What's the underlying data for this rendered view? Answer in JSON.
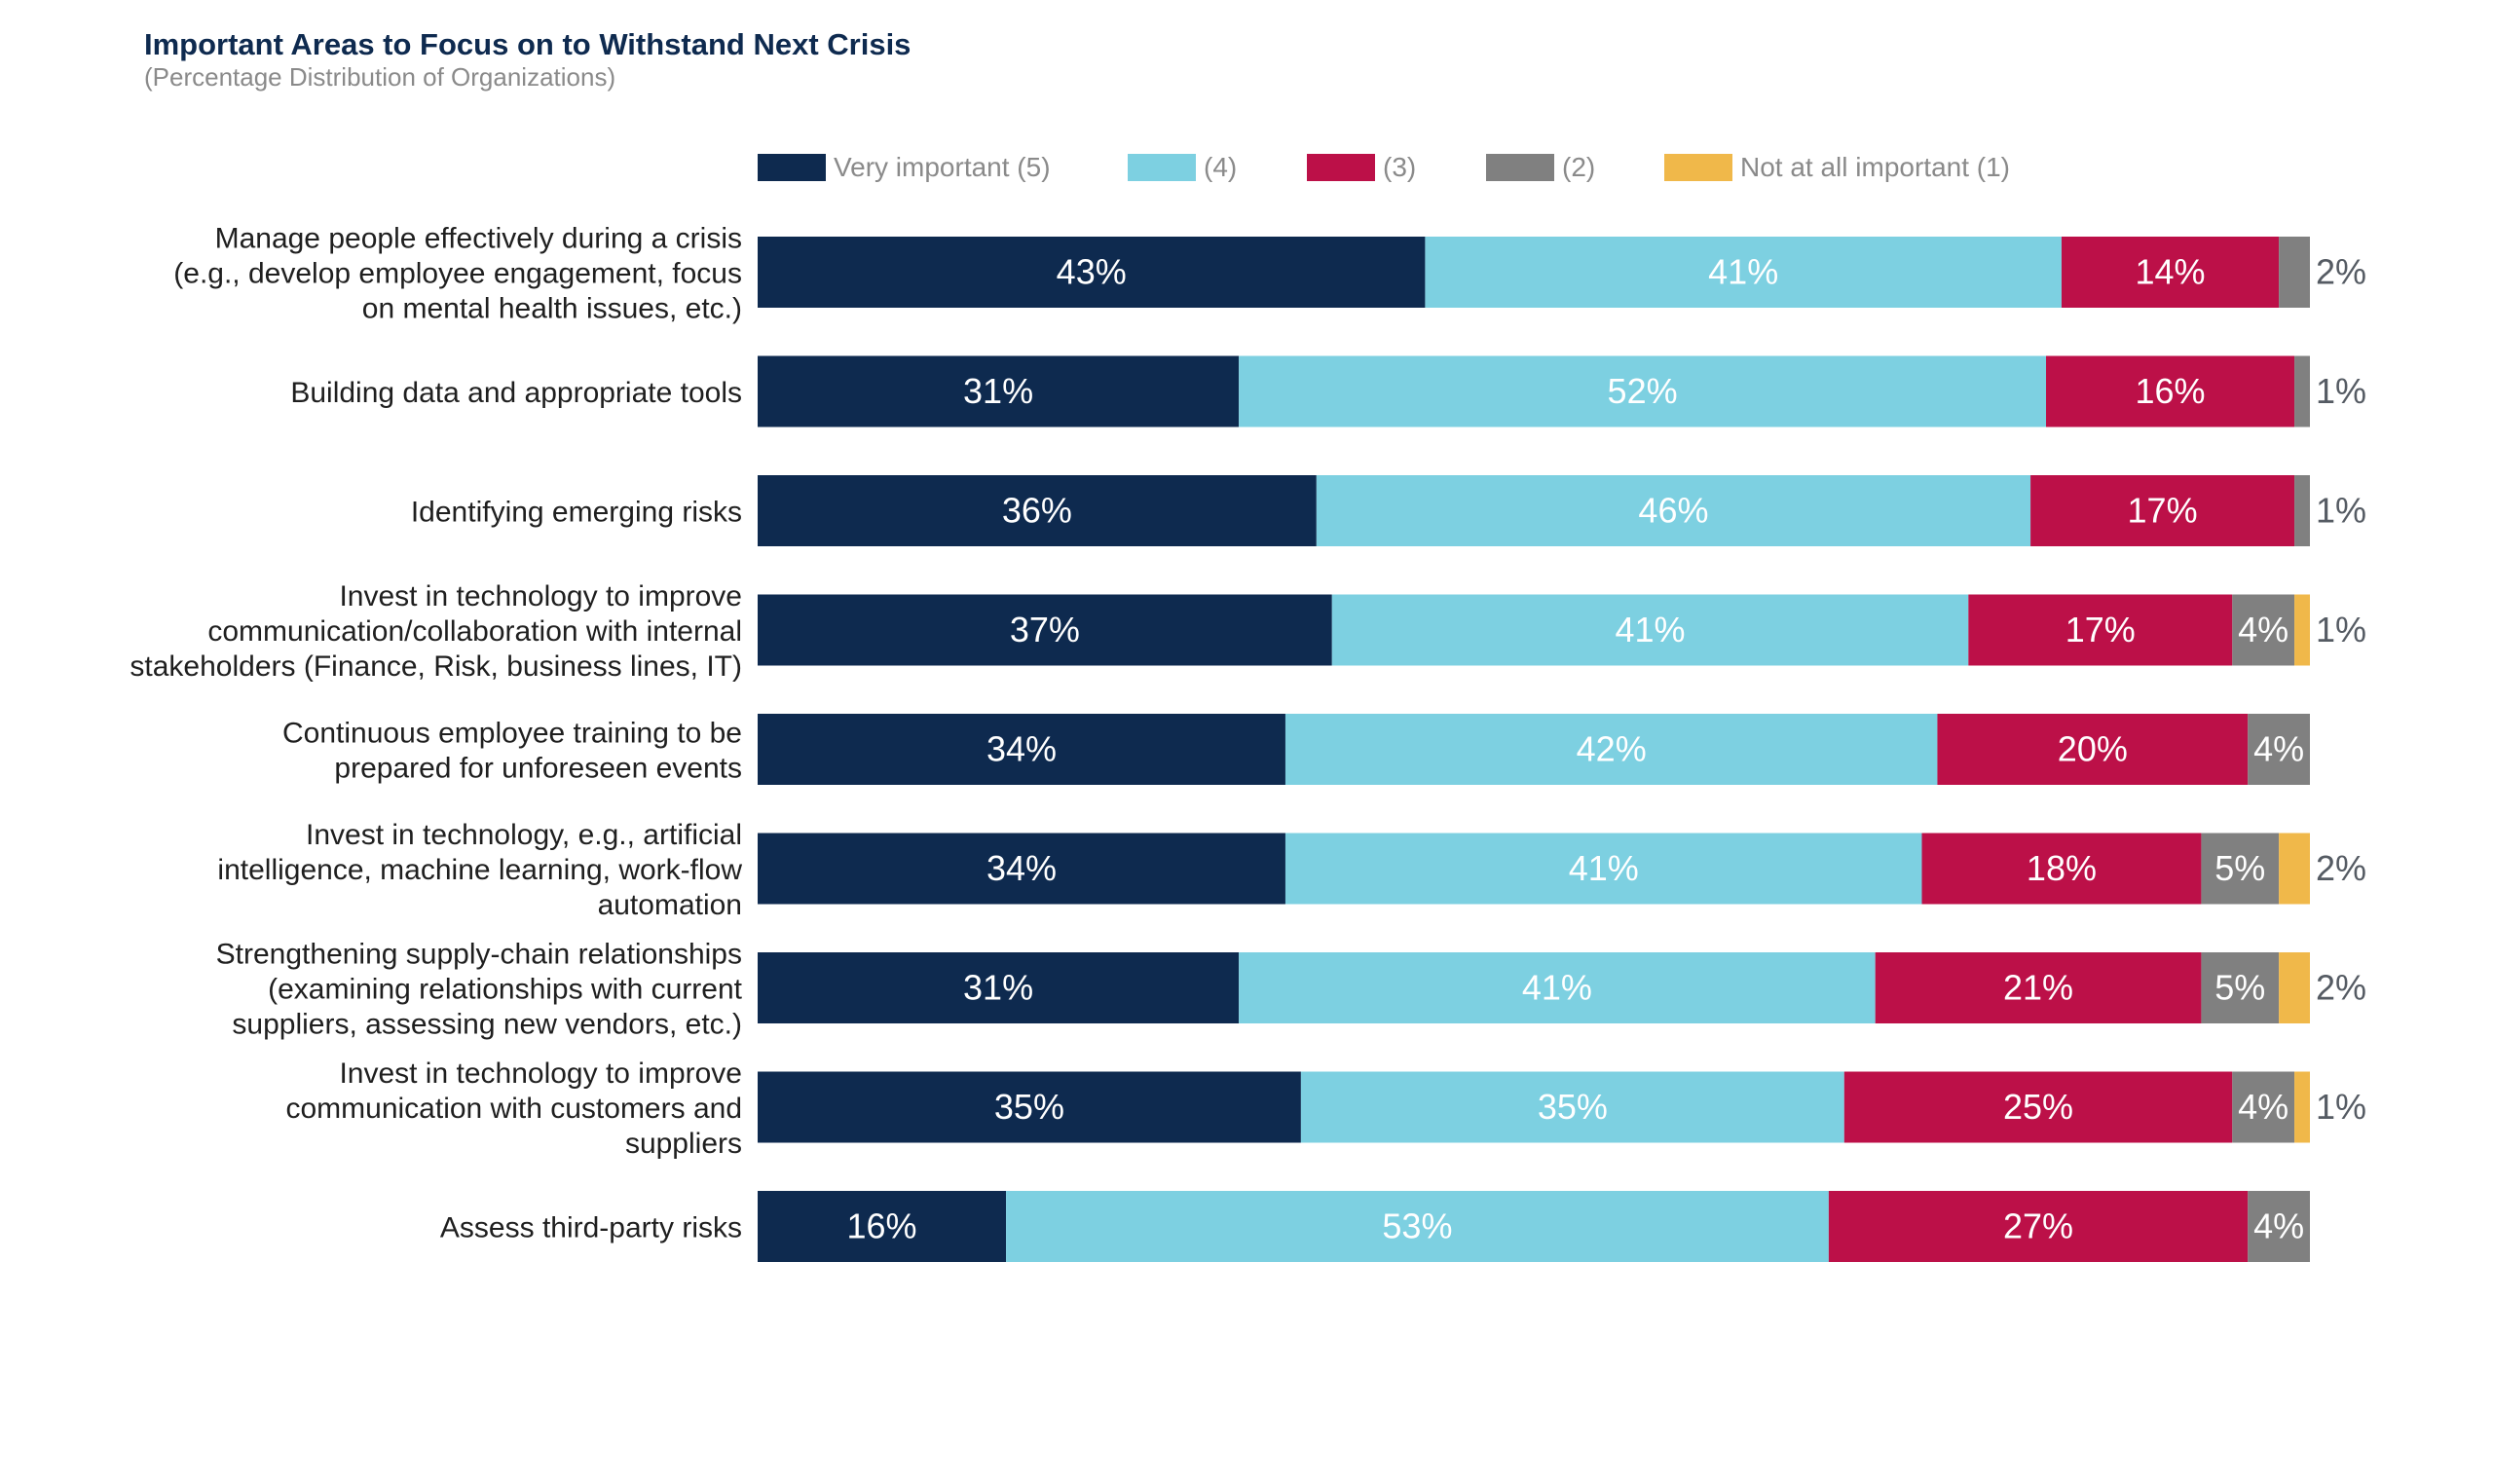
{
  "chart_data": {
    "type": "bar",
    "orientation": "horizontal",
    "stacked": true,
    "title": "Important Areas to Focus on to Withstand Next Crisis",
    "subtitle": "(Percentage Distribution of Organizations)",
    "legend_position": "top",
    "categories": [
      "Manage people effectively during a crisis (e.g., develop employee engagement, focus on mental health issues, etc.)",
      "Building data and appropriate tools",
      "Identifying emerging risks",
      "Invest in technology to improve communication/collaboration with internal stakeholders (Finance, Risk, business lines, IT)",
      "Continuous employee training to be prepared for unforeseen events",
      "Invest in technology, e.g., artificial intelligence, machine learning, work-flow automation",
      "Strengthening supply-chain relationships (examining relationships with current suppliers, assessing new vendors, etc.)",
      "Invest in technology to improve communication with customers and suppliers",
      "Assess third-party risks"
    ],
    "category_lines": [
      [
        "Manage people effectively during a crisis",
        "(e.g., develop employee engagement, focus",
        "on mental health issues, etc.)"
      ],
      [
        "Building data and appropriate tools"
      ],
      [
        "Identifying emerging risks"
      ],
      [
        "Invest in technology to improve",
        "communication/collaboration with internal",
        "stakeholders (Finance, Risk, business lines, IT)"
      ],
      [
        "Continuous employee training to be",
        "prepared for unforeseen events"
      ],
      [
        "Invest in technology, e.g., artificial",
        "intelligence, machine learning, work-flow",
        "automation"
      ],
      [
        "Strengthening supply-chain relationships",
        "(examining relationships with current",
        "suppliers, assessing new vendors, etc.)"
      ],
      [
        "Invest in technology to improve",
        "communication with customers and",
        "suppliers"
      ],
      [
        "Assess third-party risks"
      ]
    ],
    "series": [
      {
        "name": "Very important (5)",
        "color": "#0e2a4f",
        "values": [
          43,
          31,
          36,
          37,
          34,
          34,
          31,
          35,
          16
        ]
      },
      {
        "name": "(4)",
        "color": "#7dd0e1",
        "values": [
          41,
          52,
          46,
          41,
          42,
          41,
          41,
          35,
          53
        ]
      },
      {
        "name": "(3)",
        "color": "#bc1048",
        "values": [
          14,
          16,
          17,
          17,
          20,
          18,
          21,
          25,
          27
        ]
      },
      {
        "name": "(2)",
        "color": "#808080",
        "values": [
          2,
          1,
          1,
          4,
          4,
          5,
          5,
          4,
          4
        ]
      },
      {
        "name": "Not at all important (1)",
        "color": "#f0b84a",
        "values": [
          0,
          0,
          0,
          1,
          0,
          2,
          2,
          1,
          0
        ]
      }
    ],
    "labels": [
      [
        "43%",
        "41%",
        "14%",
        "2%",
        ""
      ],
      [
        "31%",
        "52%",
        "16%",
        "1%",
        ""
      ],
      [
        "36%",
        "46%",
        "17%",
        "1%",
        ""
      ],
      [
        "37%",
        "41%",
        "17%",
        "4%",
        "1%"
      ],
      [
        "34%",
        "42%",
        "20%",
        "4%",
        ""
      ],
      [
        "34%",
        "41%",
        "18%",
        "5%",
        "2%"
      ],
      [
        "31%",
        "41%",
        "21%",
        "5%",
        "2%"
      ],
      [
        "35%",
        "35%",
        "25%",
        "4%",
        "1%"
      ],
      [
        "16%",
        "53%",
        "27%",
        "4%",
        ""
      ]
    ],
    "xlim": [
      0,
      100
    ]
  }
}
